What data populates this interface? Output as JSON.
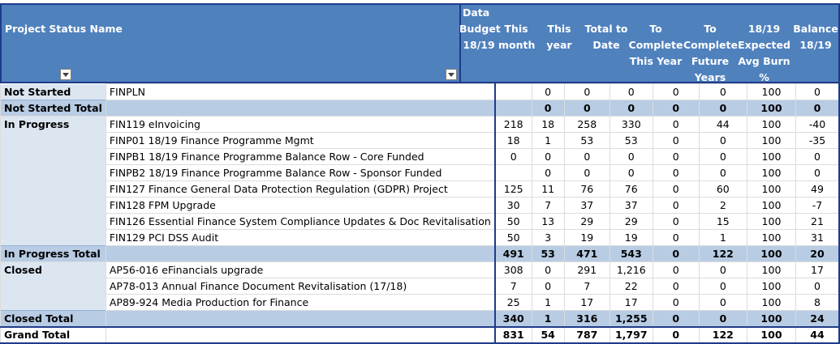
{
  "header": {
    "row_label": "Project Status Name",
    "data_label": "Data",
    "columns": [
      "Budget\n18/19",
      "This\nmonth",
      "This year",
      "Total to\nDate",
      "To\nComplete\nThis Year",
      "To\nComplete\nFuture\nYears",
      "18/19\nExpected\nAvg Burn\n%",
      "Balance\n18/19"
    ]
  },
  "rows": [
    {
      "type": "item",
      "status": "Not Started",
      "name": "FINPLN",
      "values": [
        "",
        "0",
        "0",
        "0",
        "0",
        "0",
        "100",
        "0"
      ]
    },
    {
      "type": "total",
      "status": "Not Started Total",
      "values": [
        "",
        "0",
        "0",
        "0",
        "0",
        "0",
        "100",
        "0"
      ]
    },
    {
      "type": "item",
      "status": "In Progress",
      "name": "FIN119 eInvoicing",
      "values": [
        "218",
        "18",
        "258",
        "330",
        "0",
        "44",
        "100",
        "-40"
      ]
    },
    {
      "type": "item",
      "status": "",
      "name": "FINP01 18/19 Finance Programme Mgmt",
      "values": [
        "18",
        "1",
        "53",
        "53",
        "0",
        "0",
        "100",
        "-35"
      ]
    },
    {
      "type": "item",
      "status": "",
      "name": "FINPB1 18/19 Finance Programme Balance Row - Core Funded",
      "values": [
        "0",
        "0",
        "0",
        "0",
        "0",
        "0",
        "100",
        "0"
      ]
    },
    {
      "type": "item",
      "status": "",
      "name": "FINPB2 18/19 Finance Programme Balance Row - Sponsor Funded",
      "values": [
        "",
        "0",
        "0",
        "0",
        "0",
        "0",
        "100",
        "0"
      ]
    },
    {
      "type": "item",
      "status": "",
      "name": "FIN127 Finance General Data Protection Regulation (GDPR) Project",
      "values": [
        "125",
        "11",
        "76",
        "76",
        "0",
        "60",
        "100",
        "49"
      ]
    },
    {
      "type": "item",
      "status": "",
      "name": "FIN128 FPM Upgrade",
      "values": [
        "30",
        "7",
        "37",
        "37",
        "0",
        "2",
        "100",
        "-7"
      ]
    },
    {
      "type": "item",
      "status": "",
      "name": "FIN126 Essential Finance System Compliance Updates & Doc Revitalisation",
      "values": [
        "50",
        "13",
        "29",
        "29",
        "0",
        "15",
        "100",
        "21"
      ]
    },
    {
      "type": "item",
      "status": "",
      "name": "FIN129 PCI DSS Audit",
      "values": [
        "50",
        "3",
        "19",
        "19",
        "0",
        "1",
        "100",
        "31"
      ]
    },
    {
      "type": "total",
      "status": "In Progress Total",
      "values": [
        "491",
        "53",
        "471",
        "543",
        "0",
        "122",
        "100",
        "20"
      ]
    },
    {
      "type": "item",
      "status": "Closed",
      "name": "AP56-016 eFinancials upgrade",
      "values": [
        "308",
        "0",
        "291",
        "1,216",
        "0",
        "0",
        "100",
        "17"
      ]
    },
    {
      "type": "item",
      "status": "",
      "name": "AP78-013 Annual Finance Document Revitalisation (17/18)",
      "values": [
        "7",
        "0",
        "7",
        "22",
        "0",
        "0",
        "100",
        "0"
      ]
    },
    {
      "type": "item",
      "status": "",
      "name": "AP89-924 Media Production for Finance",
      "values": [
        "25",
        "1",
        "17",
        "17",
        "0",
        "0",
        "100",
        "8"
      ]
    },
    {
      "type": "total",
      "status": "Closed Total",
      "values": [
        "340",
        "1",
        "316",
        "1,255",
        "0",
        "0",
        "100",
        "24"
      ]
    },
    {
      "type": "grand",
      "status": "Grand Total",
      "values": [
        "831",
        "54",
        "787",
        "1,797",
        "0",
        "122",
        "100",
        "44"
      ]
    }
  ]
}
